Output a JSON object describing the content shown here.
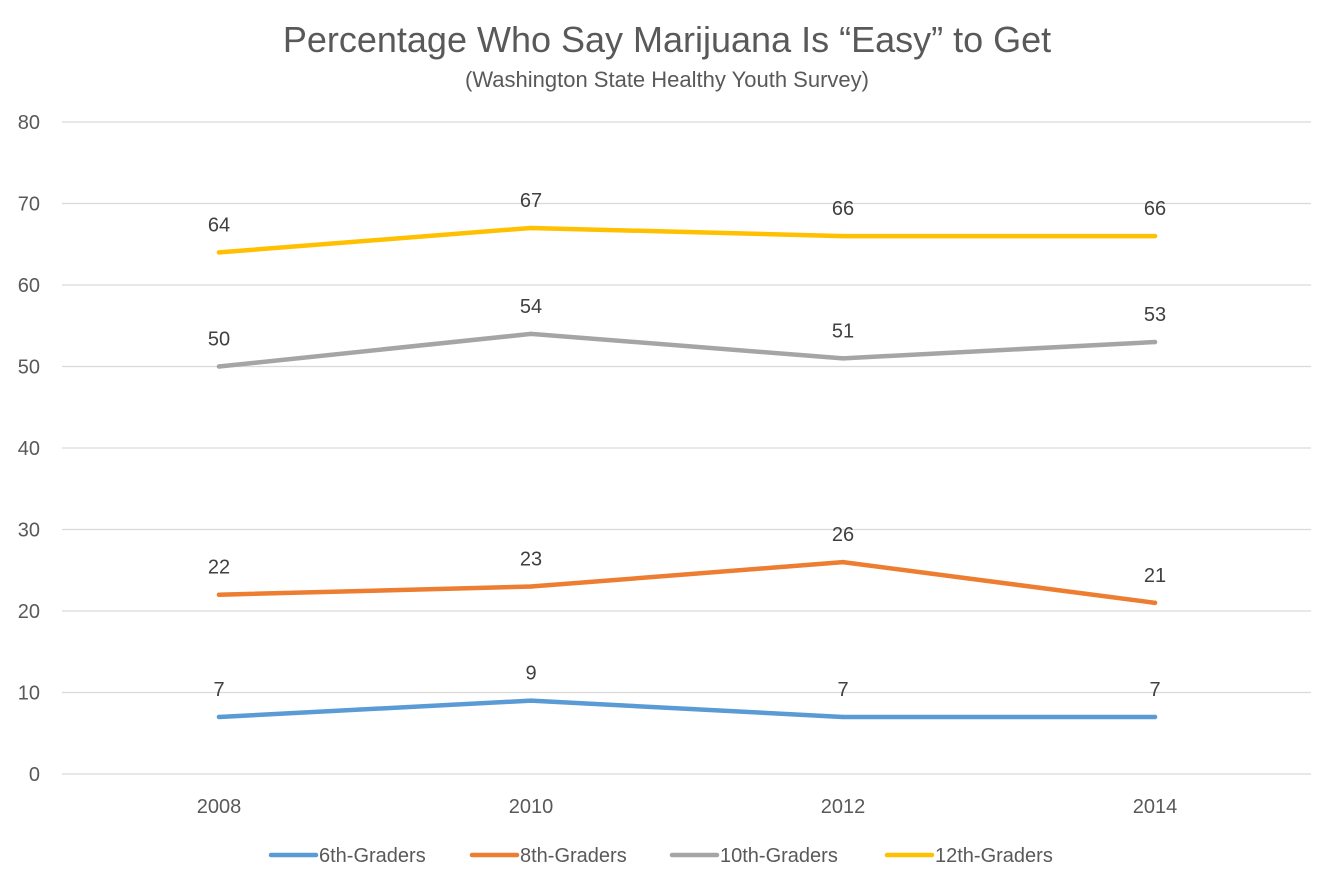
{
  "chart_data": {
    "type": "line",
    "title": "Percentage Who Say Marijuana Is “Easy” to Get",
    "subtitle": "(Washington State Healthy Youth Survey)",
    "xlabel": "",
    "ylabel": "",
    "categories": [
      "2008",
      "2010",
      "2012",
      "2014"
    ],
    "ylim": [
      0,
      80
    ],
    "yticks": [
      0,
      10,
      20,
      30,
      40,
      50,
      60,
      70,
      80
    ],
    "grid": true,
    "legend_position": "bottom",
    "data_labels": true,
    "series": [
      {
        "name": "6th-Graders",
        "values": [
          7,
          9,
          7,
          7
        ],
        "color": "#5B9BD5"
      },
      {
        "name": "8th-Graders",
        "values": [
          22,
          23,
          26,
          21
        ],
        "color": "#ED7D31"
      },
      {
        "name": "10th-Graders",
        "values": [
          50,
          54,
          51,
          53
        ],
        "color": "#A5A5A5"
      },
      {
        "name": "12th-Graders",
        "values": [
          64,
          67,
          66,
          66
        ],
        "color": "#FFC000"
      }
    ],
    "colors": {
      "gridline": "#D9D9D9",
      "text": "#595959",
      "data_label": "#404040"
    }
  }
}
